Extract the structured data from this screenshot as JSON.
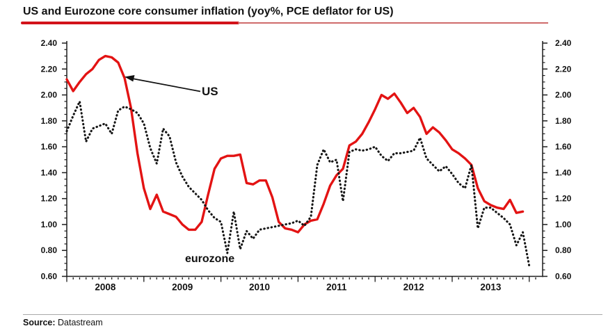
{
  "title": "US and Eurozone core consumer inflation (yoy%, PCE deflator for US)",
  "annotations": {
    "us": "US",
    "eurozone": "eurozone"
  },
  "footer": {
    "source_label": "Source:",
    "source_value": "Datastream"
  },
  "colors": {
    "background": "#ffffff",
    "text": "#111111",
    "axis": "#1c1c1c",
    "us_line": "#e31313",
    "eurozone_line": "#161616",
    "underline_thick": "#d2121a",
    "underline_thin": "#cf6b6b",
    "footer_rule": "#a9a9a9"
  },
  "chart_data": {
    "type": "line",
    "title": "US and Eurozone core consumer inflation (yoy%, PCE deflator for US)",
    "xlabel": "",
    "ylabel": "",
    "frequency": "monthly",
    "x_start": "2008-01",
    "x_tick_labels": [
      "2008",
      "2009",
      "2010",
      "2011",
      "2012",
      "2013"
    ],
    "y_tick_labels": [
      "2.40",
      "2.20",
      "2.00",
      "1.80",
      "1.60",
      "1.40",
      "1.20",
      "1.00",
      "0.80",
      "0.60"
    ],
    "ylim": [
      0.6,
      2.4
    ],
    "y_major_step": 0.2,
    "y_minor_step": 0.05,
    "grid": false,
    "y_axis": "both-sides",
    "legend_position": "inline-annotations",
    "series": [
      {
        "name": "US",
        "style": "solid",
        "color": "#e31313",
        "values": [
          2.12,
          2.03,
          2.1,
          2.16,
          2.2,
          2.27,
          2.3,
          2.29,
          2.25,
          2.13,
          1.9,
          1.55,
          1.28,
          1.12,
          1.23,
          1.1,
          1.08,
          1.06,
          1.0,
          0.96,
          0.96,
          1.02,
          1.23,
          1.43,
          1.51,
          1.53,
          1.53,
          1.54,
          1.32,
          1.31,
          1.34,
          1.34,
          1.21,
          1.02,
          0.97,
          0.96,
          0.94,
          1.0,
          1.03,
          1.04,
          1.16,
          1.3,
          1.38,
          1.43,
          1.61,
          1.64,
          1.7,
          1.79,
          1.89,
          2.0,
          1.97,
          2.01,
          1.94,
          1.86,
          1.9,
          1.83,
          1.7,
          1.75,
          1.71,
          1.65,
          1.58,
          1.55,
          1.51,
          1.46,
          1.28,
          1.18,
          1.15,
          1.13,
          1.12,
          1.19,
          1.09,
          1.1
        ]
      },
      {
        "name": "eurozone",
        "style": "dotted",
        "color": "#161616",
        "values": [
          1.72,
          1.84,
          1.95,
          1.64,
          1.74,
          1.76,
          1.78,
          1.7,
          1.88,
          1.91,
          1.89,
          1.86,
          1.78,
          1.59,
          1.47,
          1.74,
          1.68,
          1.48,
          1.37,
          1.29,
          1.24,
          1.19,
          1.11,
          1.05,
          1.02,
          0.78,
          1.1,
          0.81,
          0.95,
          0.89,
          0.96,
          0.97,
          0.98,
          0.99,
          1.0,
          1.01,
          1.03,
          0.99,
          1.06,
          1.46,
          1.58,
          1.48,
          1.5,
          1.18,
          1.56,
          1.58,
          1.57,
          1.58,
          1.6,
          1.53,
          1.49,
          1.55,
          1.55,
          1.56,
          1.57,
          1.67,
          1.51,
          1.46,
          1.41,
          1.45,
          1.39,
          1.32,
          1.28,
          1.46,
          0.97,
          1.13,
          1.13,
          1.09,
          1.05,
          1.0,
          0.84,
          0.94,
          0.68
        ]
      }
    ]
  }
}
